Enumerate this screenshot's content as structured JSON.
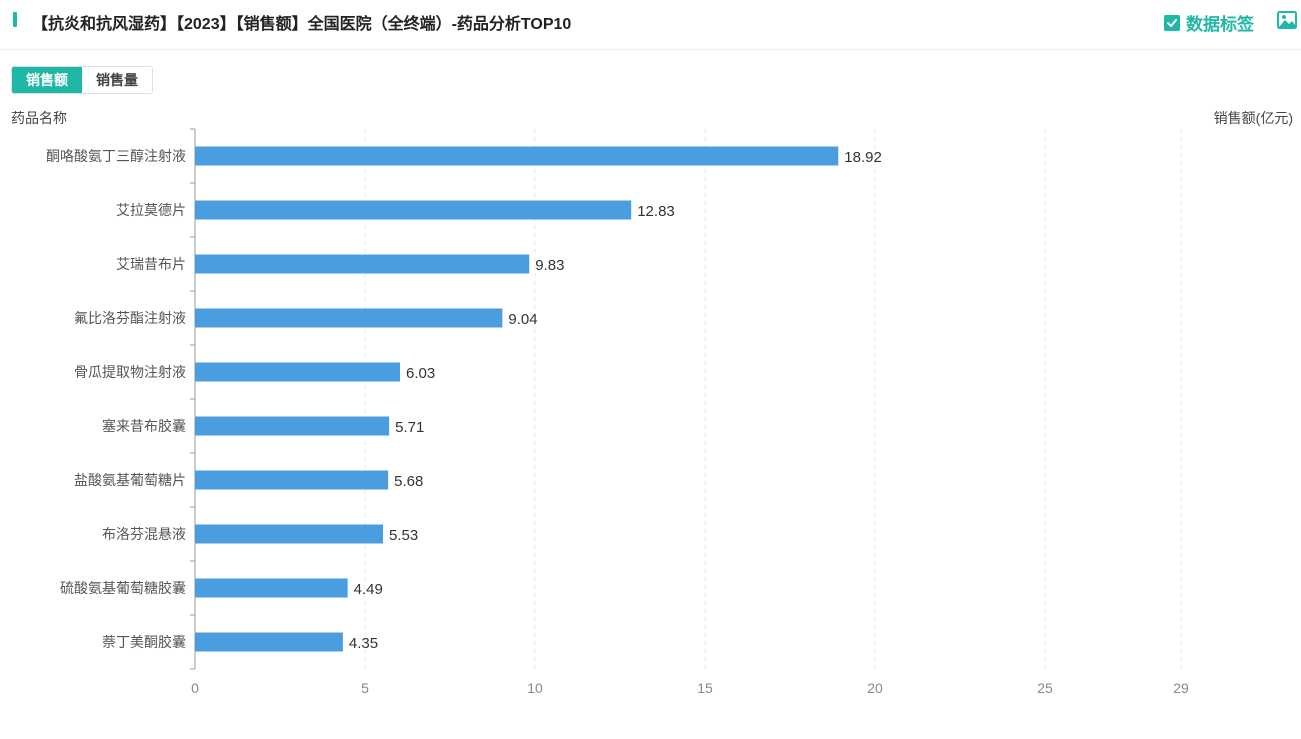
{
  "header": {
    "title": "【抗炎和抗风湿药】【2023】【销售额】全国医院（全终端）-药品分析TOP10",
    "data_label_toggle": "数据标签",
    "data_label_checked": true
  },
  "segmented": {
    "items": [
      "销售额",
      "销售量"
    ],
    "active": 0
  },
  "colors": {
    "accent": "#1fb8a6",
    "bar": "#4a9ee0"
  },
  "chart_data": {
    "type": "bar",
    "orientation": "horizontal",
    "ylabel": "药品名称",
    "xlabel": "销售额(亿元)",
    "categories": [
      "酮咯酸氨丁三醇注射液",
      "艾拉莫德片",
      "艾瑞昔布片",
      "氟比洛芬酯注射液",
      "骨瓜提取物注射液",
      "塞来昔布胶囊",
      "盐酸氨基葡萄糖片",
      "布洛芬混悬液",
      "硫酸氨基葡萄糖胶囊",
      "萘丁美酮胶囊"
    ],
    "values": [
      18.92,
      12.83,
      9.83,
      9.04,
      6.03,
      5.71,
      5.68,
      5.53,
      4.49,
      4.35
    ],
    "value_labels": [
      "18.92",
      "12.83",
      "9.83",
      "9.04",
      "6.03",
      "5.71",
      "5.68",
      "5.53",
      "4.49",
      "4.35"
    ],
    "xticks": [
      0,
      5,
      10,
      15,
      20,
      25,
      29
    ],
    "xlim": [
      0,
      29
    ],
    "grid": true,
    "data_labels": true
  }
}
